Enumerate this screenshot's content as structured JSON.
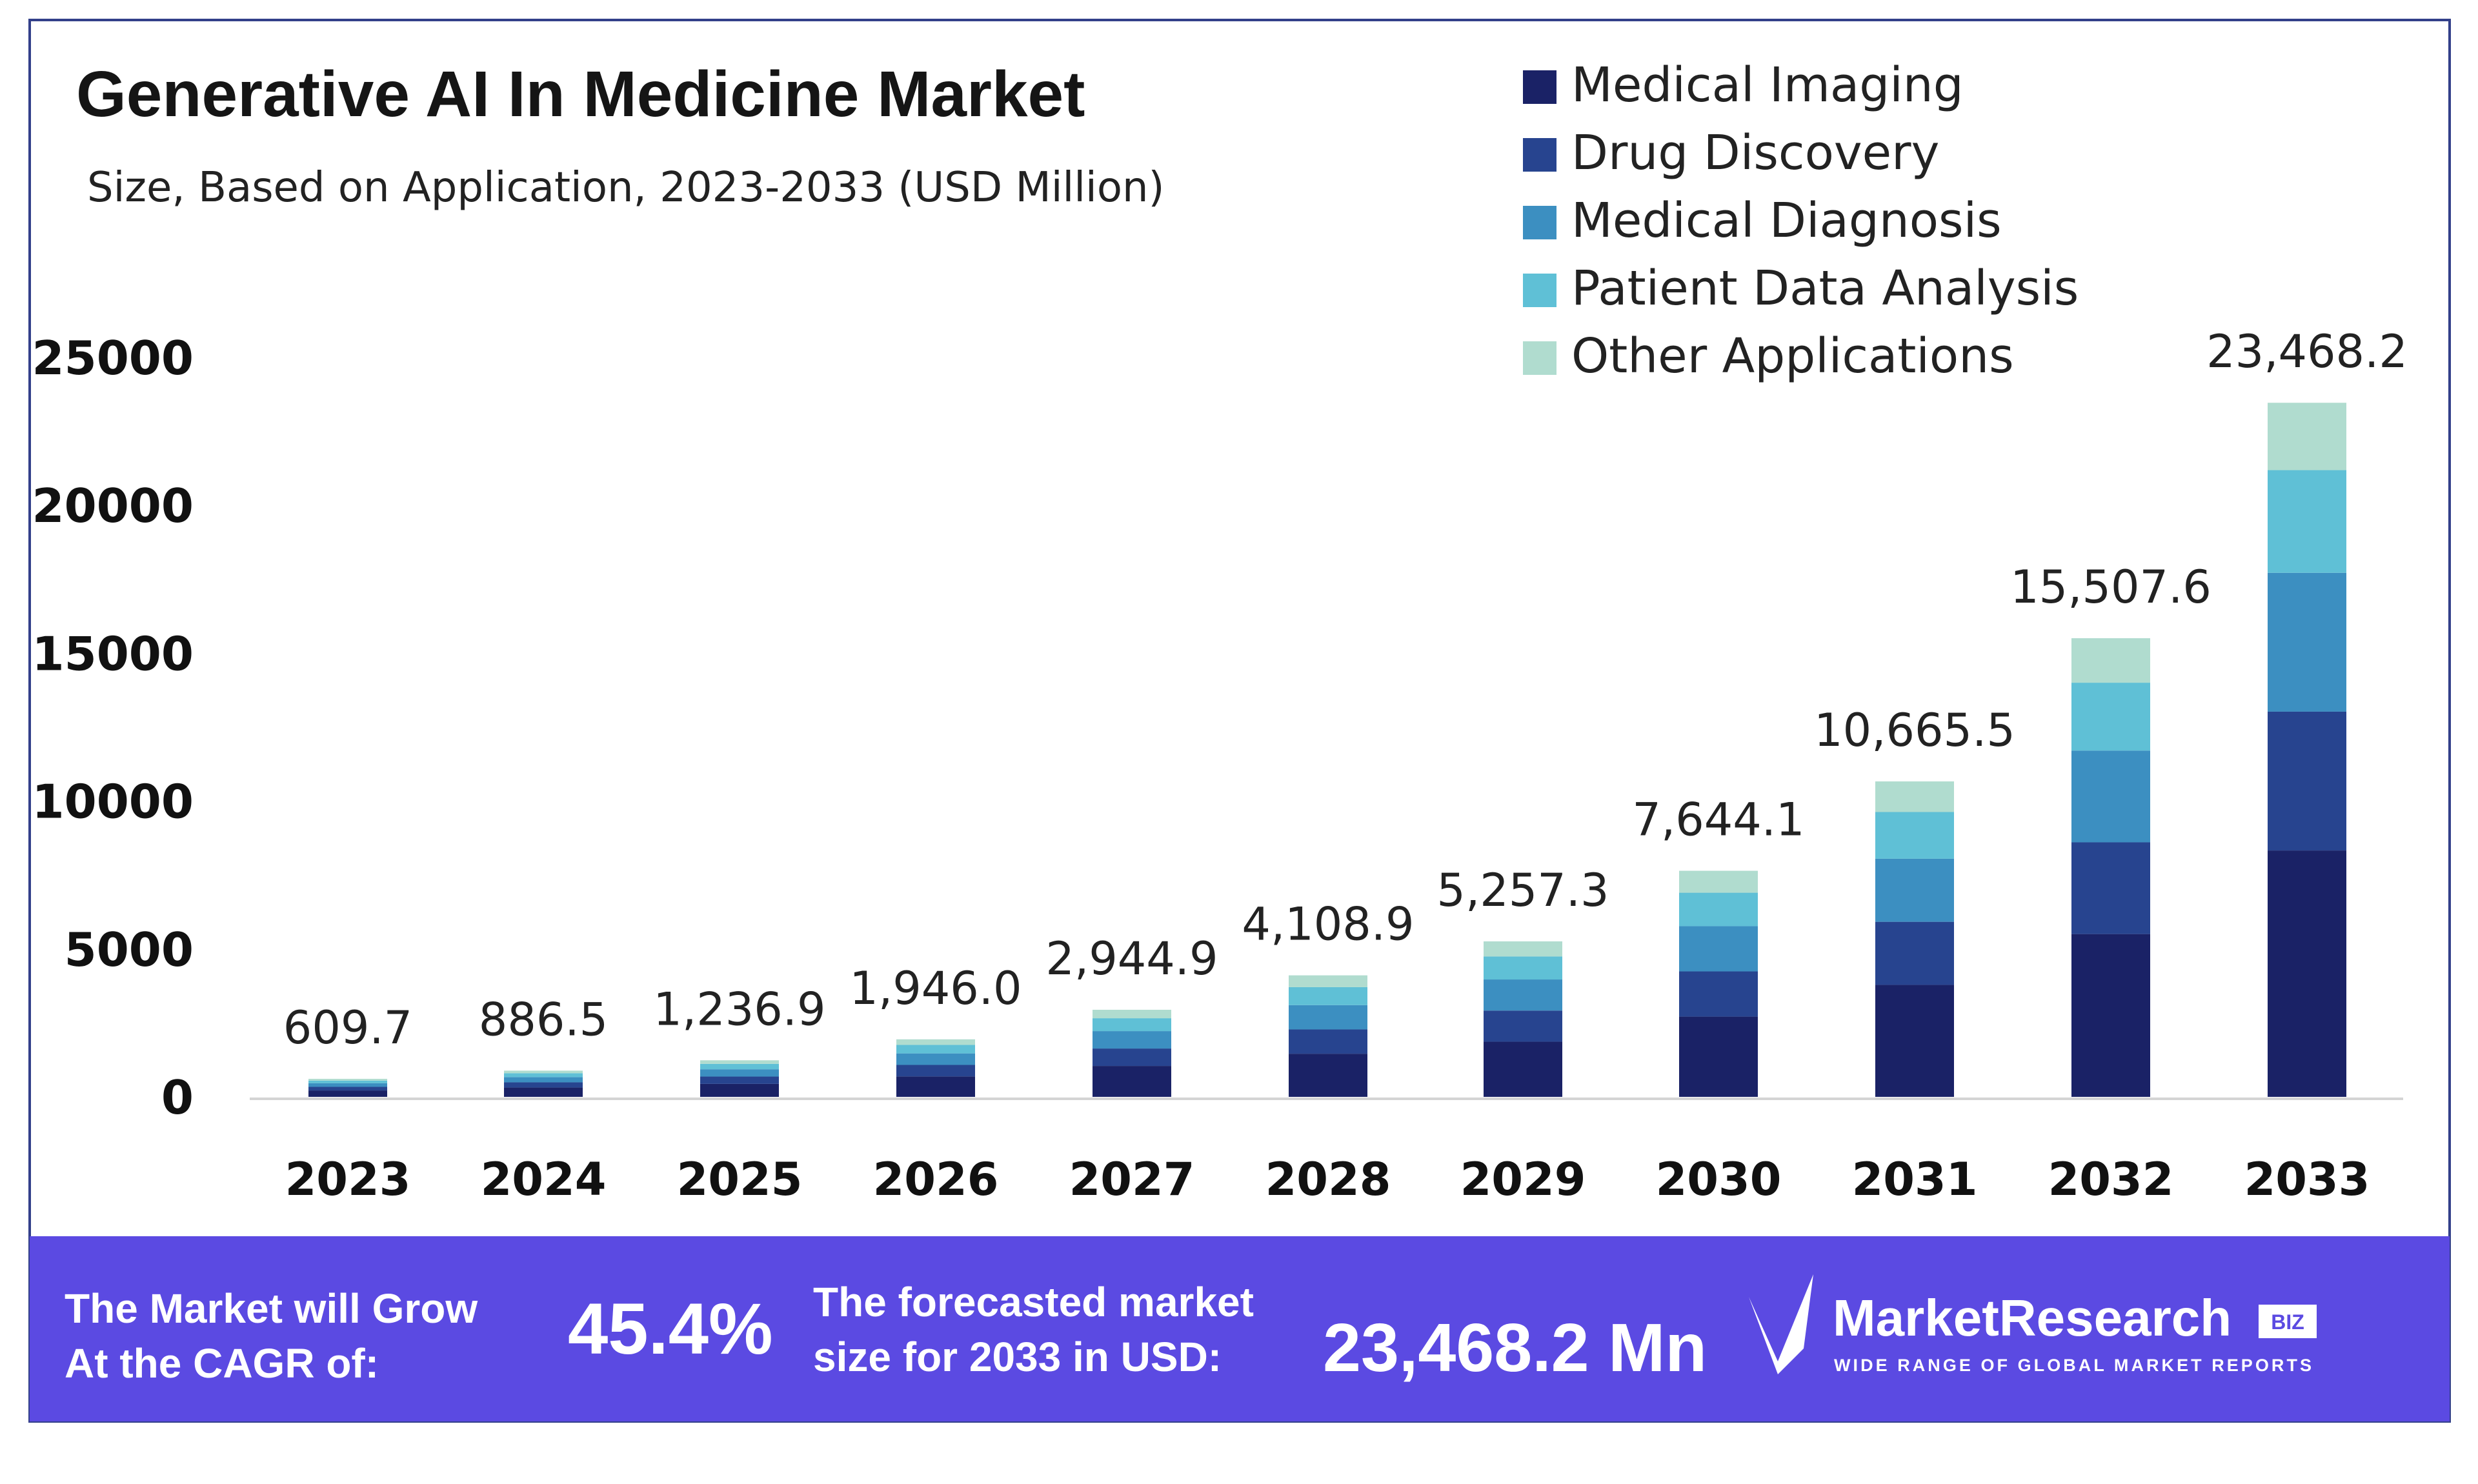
{
  "title": "Generative AI In Medicine Market",
  "subtitle": "Size, Based on Application, 2023-2033 (USD Million)",
  "colors": {
    "Medical Imaging": "#1a2266",
    "Drug Discovery": "#27448f",
    "Medical Diagnosis": "#3c8fc1",
    "Patient Data Analysis": "#5fc0d6",
    "Other Applications": "#b0dccf",
    "banner": "#5b4ae2"
  },
  "chart_data": {
    "type": "bar",
    "stacked": true,
    "title": "Generative AI In Medicine Market",
    "subtitle": "Size, Based on Application, 2023-2033 (USD Million)",
    "xlabel": "",
    "ylabel": "",
    "ylim": [
      0,
      25000
    ],
    "yticks": [
      "0",
      "5000",
      "10000",
      "15000",
      "20000",
      "25000"
    ],
    "grid": false,
    "legend": "top-right",
    "categories": [
      "2023",
      "2024",
      "2025",
      "2026",
      "2027",
      "2028",
      "2029",
      "2030",
      "2031",
      "2032",
      "2033"
    ],
    "totals": [
      609.7,
      886.5,
      1236.9,
      1946.0,
      2944.9,
      4108.9,
      5257.3,
      7644.1,
      10665.5,
      15507.6,
      23468.2
    ],
    "total_labels": [
      "609.7",
      "886.5",
      "1,236.9",
      "1,946.0",
      "2,944.9",
      "4,108.9",
      "5,257.3",
      "7,644.1",
      "10,665.5",
      "15,507.6",
      "23,468.2"
    ],
    "series": [
      {
        "name": "Medical Imaging",
        "values": [
          216.4,
          314.7,
          439.1,
          690.8,
          1045.4,
          1458.7,
          1866.3,
          2713.7,
          3786.3,
          5505.2,
          8331.2
        ]
      },
      {
        "name": "Drug Discovery",
        "values": [
          121.9,
          177.3,
          247.4,
          389.2,
          589.0,
          821.8,
          1051.5,
          1528.8,
          2133.1,
          3101.5,
          4693.6
        ]
      },
      {
        "name": "Medical Diagnosis",
        "values": [
          121.9,
          177.3,
          247.4,
          389.2,
          589.0,
          821.8,
          1051.5,
          1528.8,
          2133.1,
          3101.5,
          4693.6
        ]
      },
      {
        "name": "Patient Data Analysis",
        "values": [
          90.2,
          131.2,
          183.1,
          288.0,
          435.8,
          608.1,
          778.1,
          1131.3,
          1578.5,
          2295.1,
          3473.3
        ]
      },
      {
        "name": "Other Applications",
        "values": [
          59.1,
          86.0,
          120.0,
          188.8,
          285.7,
          398.6,
          509.9,
          741.5,
          1034.6,
          1504.2,
          2276.4
        ]
      }
    ]
  },
  "banner": {
    "cagr_text_1": "The Market will Grow",
    "cagr_text_2": "At the CAGR of:",
    "cagr_value": "45.4%",
    "forecast_text_1": "The forecasted market",
    "forecast_text_2": "size for 2033 in USD:",
    "forecast_value": "23,468.2 Mn",
    "logo_text": "MarketResearch",
    "logo_badge": "BIZ",
    "logo_tagline": "WIDE RANGE OF GLOBAL MARKET REPORTS"
  }
}
